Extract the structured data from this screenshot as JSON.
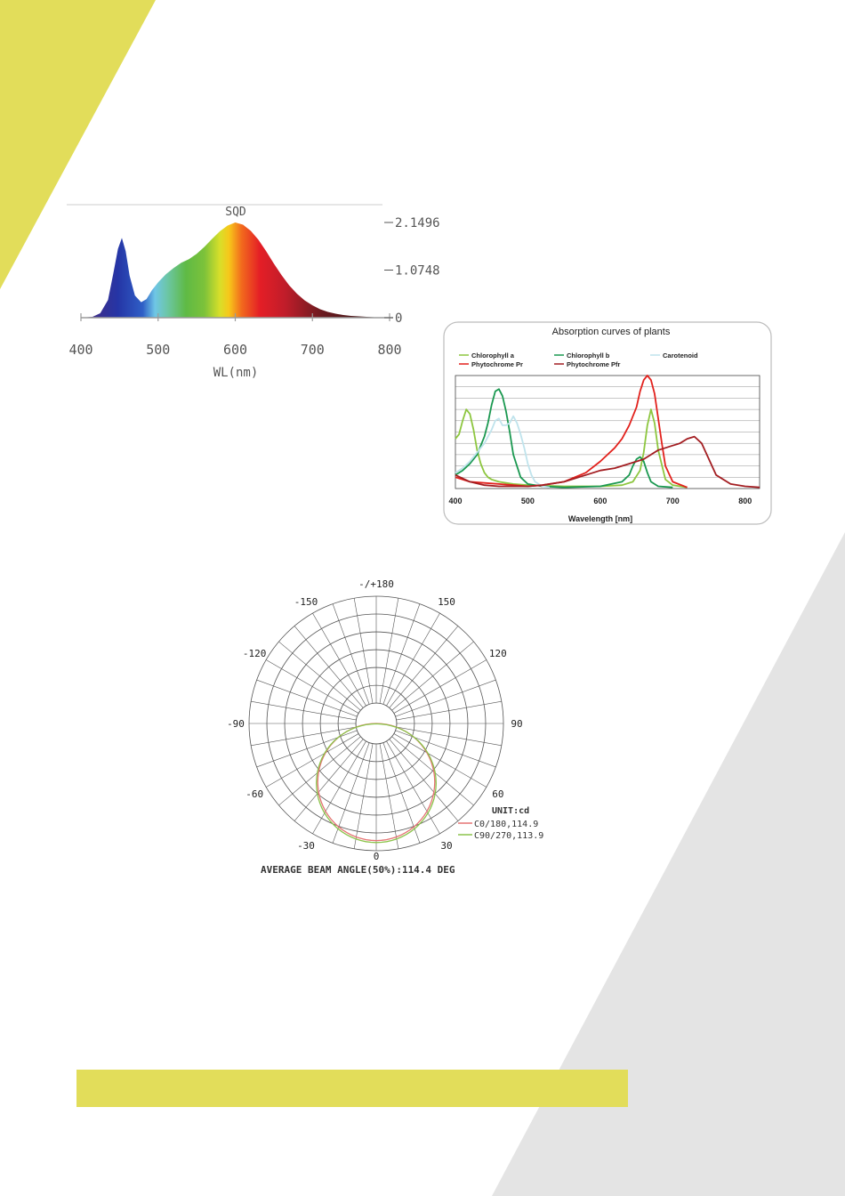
{
  "colors": {
    "accent_yellow": "#e2dd5a",
    "accent_gray": "#e4e4e4"
  },
  "chart_data": [
    {
      "type": "area",
      "title": "SQD",
      "xlabel": "WL(nm)",
      "ylabel": "",
      "xlim": [
        400,
        800
      ],
      "ylim": [
        0,
        2.1496
      ],
      "x_ticks": [
        400,
        500,
        600,
        700,
        800
      ],
      "y_ticks": [
        0,
        1.0748,
        2.1496
      ],
      "x_tick_labels": [
        "400",
        "500",
        "600",
        "700",
        "800"
      ],
      "y_tick_labels": [
        "0",
        "1.0748",
        "2.1496"
      ],
      "fill": "spectral-gradient",
      "series": [
        {
          "x": [
            400,
            415,
            425,
            435,
            442,
            448,
            453,
            458,
            463,
            470,
            478,
            485,
            492,
            500,
            510,
            520,
            530,
            540,
            550,
            560,
            570,
            580,
            590,
            600,
            610,
            620,
            630,
            640,
            650,
            660,
            670,
            680,
            690,
            700,
            710,
            720,
            730,
            740,
            750,
            760,
            770,
            780,
            790,
            800
          ],
          "values": [
            0.0,
            0.02,
            0.1,
            0.4,
            1.0,
            1.55,
            1.8,
            1.5,
            0.95,
            0.5,
            0.35,
            0.42,
            0.62,
            0.8,
            0.98,
            1.12,
            1.24,
            1.32,
            1.44,
            1.6,
            1.78,
            1.95,
            2.08,
            2.15,
            2.1,
            1.96,
            1.76,
            1.5,
            1.22,
            0.96,
            0.73,
            0.54,
            0.39,
            0.28,
            0.19,
            0.13,
            0.09,
            0.06,
            0.04,
            0.03,
            0.02,
            0.01,
            0.01,
            0.0
          ]
        }
      ]
    },
    {
      "type": "line",
      "title": "Absorption curves of plants",
      "xlabel": "Wavelength [nm]",
      "ylabel": "",
      "xlim": [
        400,
        820
      ],
      "ylim": [
        0,
        100
      ],
      "x_ticks": [
        400,
        500,
        600,
        700,
        800
      ],
      "x_tick_labels": [
        "400",
        "500",
        "600",
        "700",
        "800"
      ],
      "grid": true,
      "legend_position": "top",
      "series": [
        {
          "name": "Chlorophyll a",
          "color": "#8dc63f",
          "x": [
            400,
            405,
            410,
            415,
            420,
            425,
            430,
            435,
            440,
            445,
            450,
            460,
            470,
            480,
            500,
            550,
            600,
            630,
            645,
            655,
            660,
            665,
            670,
            675,
            680,
            690,
            700,
            720
          ],
          "values": [
            44,
            48,
            60,
            70,
            66,
            52,
            34,
            22,
            14,
            10,
            8,
            6,
            5,
            4,
            3,
            2,
            2,
            3,
            6,
            16,
            32,
            56,
            70,
            58,
            34,
            8,
            3,
            1
          ]
        },
        {
          "name": "Chlorophyll b",
          "color": "#1a9850",
          "x": [
            400,
            410,
            420,
            430,
            440,
            445,
            450,
            455,
            460,
            465,
            470,
            475,
            480,
            490,
            500,
            520,
            550,
            600,
            630,
            640,
            645,
            650,
            655,
            660,
            665,
            670,
            680,
            700
          ],
          "values": [
            12,
            16,
            22,
            30,
            46,
            58,
            74,
            86,
            88,
            82,
            68,
            50,
            30,
            10,
            4,
            2,
            1,
            2,
            6,
            12,
            20,
            26,
            28,
            24,
            14,
            6,
            2,
            1
          ]
        },
        {
          "name": "Carotenoid",
          "color": "#bfe3ec",
          "x": [
            400,
            410,
            420,
            430,
            440,
            450,
            455,
            460,
            465,
            470,
            475,
            480,
            485,
            490,
            495,
            500,
            505,
            510,
            520,
            530
          ],
          "values": [
            14,
            18,
            24,
            32,
            40,
            52,
            60,
            62,
            56,
            56,
            58,
            64,
            58,
            48,
            36,
            22,
            12,
            6,
            2,
            1
          ]
        },
        {
          "name": "Phytochrome Pr",
          "color": "#e2211c",
          "x": [
            400,
            420,
            440,
            460,
            480,
            500,
            520,
            550,
            580,
            600,
            620,
            630,
            640,
            650,
            655,
            660,
            665,
            670,
            675,
            680,
            685,
            690,
            700,
            720
          ],
          "values": [
            10,
            6,
            5,
            4,
            3,
            2,
            3,
            6,
            14,
            24,
            36,
            44,
            56,
            72,
            86,
            96,
            100,
            96,
            84,
            62,
            40,
            20,
            6,
            1
          ]
        },
        {
          "name": "Phytochrome Pfr",
          "color": "#a31e22",
          "x": [
            400,
            420,
            440,
            460,
            480,
            500,
            520,
            550,
            580,
            600,
            620,
            640,
            660,
            680,
            690,
            700,
            710,
            720,
            730,
            740,
            750,
            760,
            780,
            800,
            820
          ],
          "values": [
            12,
            6,
            3,
            2,
            2,
            2,
            3,
            6,
            12,
            16,
            18,
            22,
            26,
            34,
            36,
            38,
            40,
            44,
            46,
            40,
            26,
            12,
            4,
            2,
            1
          ]
        }
      ]
    },
    {
      "type": "polar",
      "title": "",
      "unit_label": "UNIT:cd",
      "angle_ticks": [
        -150,
        -120,
        -90,
        -60,
        -30,
        0,
        30,
        60,
        90,
        120,
        150
      ],
      "angle_tick_labels": [
        "-150",
        "-120",
        "-90",
        "-60",
        "-30",
        "0",
        "30",
        "60",
        "90",
        "120",
        "150"
      ],
      "top_label": "-/+180",
      "caption": "AVERAGE BEAM ANGLE(50%):114.4 DEG",
      "series": [
        {
          "name": "C0/180,114.9",
          "color": "#e57373",
          "beam_angle": 114.9
        },
        {
          "name": "C90/270,113.9",
          "color": "#8bc34a",
          "beam_angle": 113.9
        }
      ]
    }
  ]
}
